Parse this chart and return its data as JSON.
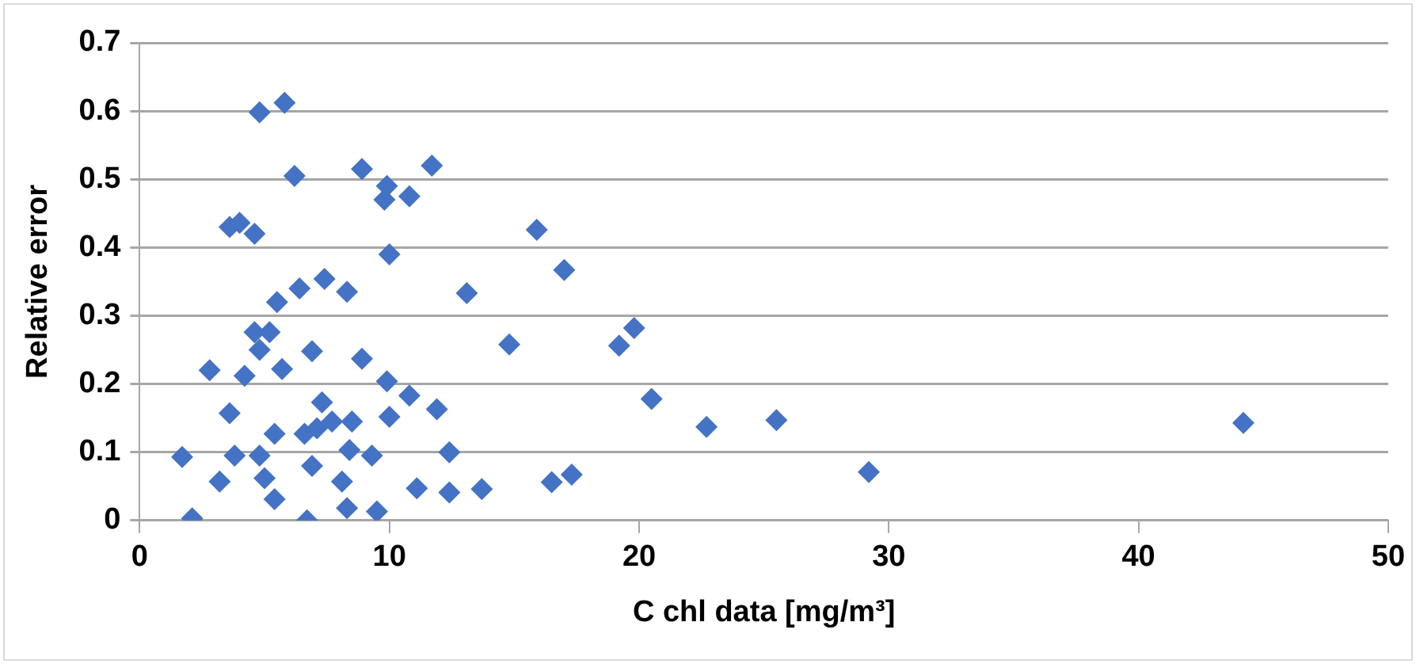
{
  "chart_data": {
    "type": "scatter",
    "xlabel": "C chl data [mg/m³]",
    "ylabel": "Relative error",
    "marker": "diamond",
    "grid": "y",
    "xlim": [
      0,
      50
    ],
    "xticks": [
      0,
      10,
      20,
      30,
      40,
      50
    ],
    "ylim": [
      0,
      0.7
    ],
    "yticks": [
      0,
      0.1,
      0.2,
      0.3,
      0.4,
      0.5,
      0.6,
      0.7
    ],
    "series": [
      {
        "color": "#4472c4",
        "x": [
          1.7,
          2.1,
          2.8,
          3.2,
          3.6,
          3.6,
          3.8,
          4.0,
          4.2,
          4.6,
          4.6,
          4.8,
          4.8,
          4.8,
          5.0,
          5.2,
          5.4,
          5.4,
          5.5,
          5.7,
          5.8,
          6.2,
          6.4,
          6.6,
          6.7,
          6.9,
          6.9,
          7.1,
          7.3,
          7.4,
          7.7,
          8.1,
          8.3,
          8.3,
          8.4,
          8.5,
          8.9,
          8.9,
          9.3,
          9.5,
          9.8,
          9.9,
          9.9,
          10.0,
          10.0,
          10.8,
          10.8,
          11.1,
          11.7,
          11.9,
          12.4,
          12.4,
          13.1,
          13.7,
          14.8,
          15.9,
          16.5,
          17.0,
          17.3,
          19.2,
          19.8,
          20.5,
          22.7,
          25.5,
          29.2,
          44.2
        ],
        "values": [
          0.093,
          0.003,
          0.22,
          0.057,
          0.157,
          0.43,
          0.095,
          0.436,
          0.212,
          0.42,
          0.276,
          0.598,
          0.25,
          0.095,
          0.062,
          0.276,
          0.127,
          0.031,
          0.32,
          0.222,
          0.612,
          0.505,
          0.34,
          0.127,
          0.0,
          0.248,
          0.08,
          0.135,
          0.173,
          0.354,
          0.145,
          0.057,
          0.335,
          0.018,
          0.103,
          0.145,
          0.515,
          0.237,
          0.095,
          0.013,
          0.47,
          0.49,
          0.204,
          0.39,
          0.152,
          0.475,
          0.183,
          0.047,
          0.52,
          0.163,
          0.1,
          0.041,
          0.333,
          0.046,
          0.258,
          0.426,
          0.056,
          0.367,
          0.067,
          0.256,
          0.282,
          0.178,
          0.137,
          0.147,
          0.071,
          0.143
        ]
      }
    ]
  }
}
